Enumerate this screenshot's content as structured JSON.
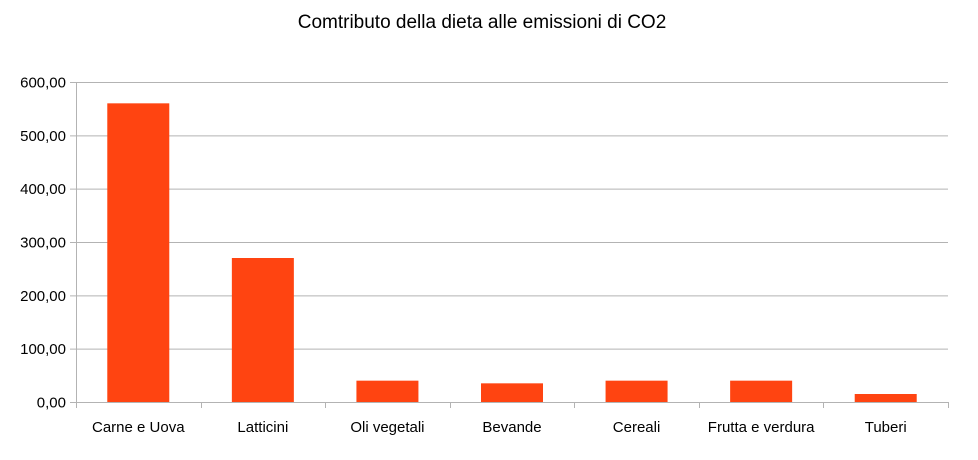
{
  "chart_data": {
    "type": "bar",
    "title": "Comtributo della dieta alle emissioni di CO2",
    "categories": [
      "Carne e Uova",
      "Latticini",
      "Oli vegetali",
      "Bevande",
      "Cereali",
      "Frutta e verdura",
      "Tuberi"
    ],
    "values": [
      560,
      270,
      40,
      35,
      40,
      40,
      15
    ],
    "ylim": [
      0,
      600
    ],
    "yticks": [
      0,
      100,
      200,
      300,
      400,
      500,
      600
    ],
    "ytick_labels": [
      "0,00",
      "100,00",
      "200,00",
      "300,00",
      "400,00",
      "500,00",
      "600,00"
    ],
    "xlabel": "",
    "ylabel": "",
    "bar_color": "#ff4411",
    "grid": true,
    "legend": "none"
  }
}
